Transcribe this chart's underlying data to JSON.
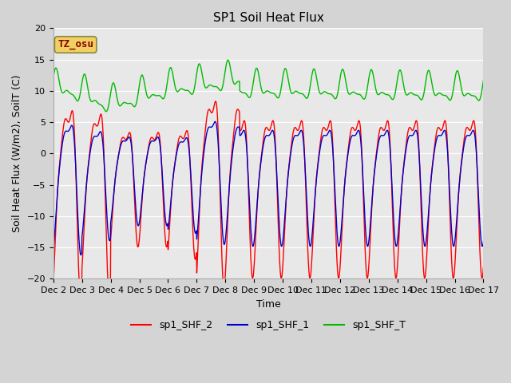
{
  "title": "SP1 Soil Heat Flux",
  "xlabel": "Time",
  "ylabel": "Soil Heat Flux (W/m2), SoilT (C)",
  "ylim": [
    -20,
    20
  ],
  "yticks": [
    -20,
    -15,
    -10,
    -5,
    0,
    5,
    10,
    15,
    20
  ],
  "xtick_labels": [
    "Dec 2",
    "Dec 3",
    "Dec 4",
    "Dec 5",
    "Dec 6",
    "Dec 7",
    "Dec 8",
    "Dec 9",
    "Dec 10",
    "Dec 11",
    "Dec 12",
    "Dec 13",
    "Dec 14",
    "Dec 15",
    "Dec 16",
    "Dec 17"
  ],
  "annotation_text": "TZ_osu",
  "annotation_color": "#8B0000",
  "annotation_bg": "#f0d060",
  "line_colors": [
    "#ff0000",
    "#0000cc",
    "#00bb00"
  ],
  "line_labels": [
    "sp1_SHF_2",
    "sp1_SHF_1",
    "sp1_SHF_T"
  ],
  "background_color": "#d4d4d4",
  "plot_bg_color": "#e8e8e8",
  "title_fontsize": 11,
  "axis_fontsize": 9,
  "tick_fontsize": 8
}
